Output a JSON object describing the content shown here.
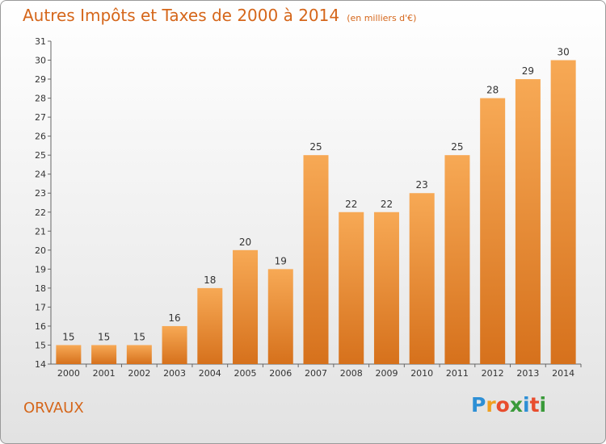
{
  "title": "Autres Impôts et Taxes de 2000 à 2014",
  "unit": "(en milliers d'€)",
  "commune": "ORVAUX",
  "logo": {
    "letters": [
      "P",
      "r",
      "o",
      "x",
      "i",
      "t",
      "i"
    ],
    "colors": [
      "#2d8fd5",
      "#f0a020",
      "#e84d2e",
      "#3a9a3a",
      "#2d8fd5",
      "#e84d2e",
      "#3a9a3a"
    ]
  },
  "colors": {
    "bar_light": "#f7a955",
    "bar_dark": "#d6711c",
    "title": "#d5661a"
  },
  "chart_data": {
    "type": "bar",
    "categories": [
      "2000",
      "2001",
      "2002",
      "2003",
      "2004",
      "2005",
      "2006",
      "2007",
      "2008",
      "2009",
      "2010",
      "2011",
      "2012",
      "2013",
      "2014"
    ],
    "values": [
      15,
      15,
      15,
      16,
      18,
      20,
      19,
      25,
      22,
      22,
      23,
      25,
      28,
      29,
      30
    ],
    "ylim": [
      14,
      31
    ],
    "yticks": [
      14,
      15,
      16,
      17,
      18,
      19,
      20,
      21,
      22,
      23,
      24,
      25,
      26,
      27,
      28,
      29,
      30,
      31
    ],
    "title": "Autres Impôts et Taxes de 2000 à 2014",
    "xlabel": "",
    "ylabel": "",
    "grid": false,
    "data_labels": true
  }
}
